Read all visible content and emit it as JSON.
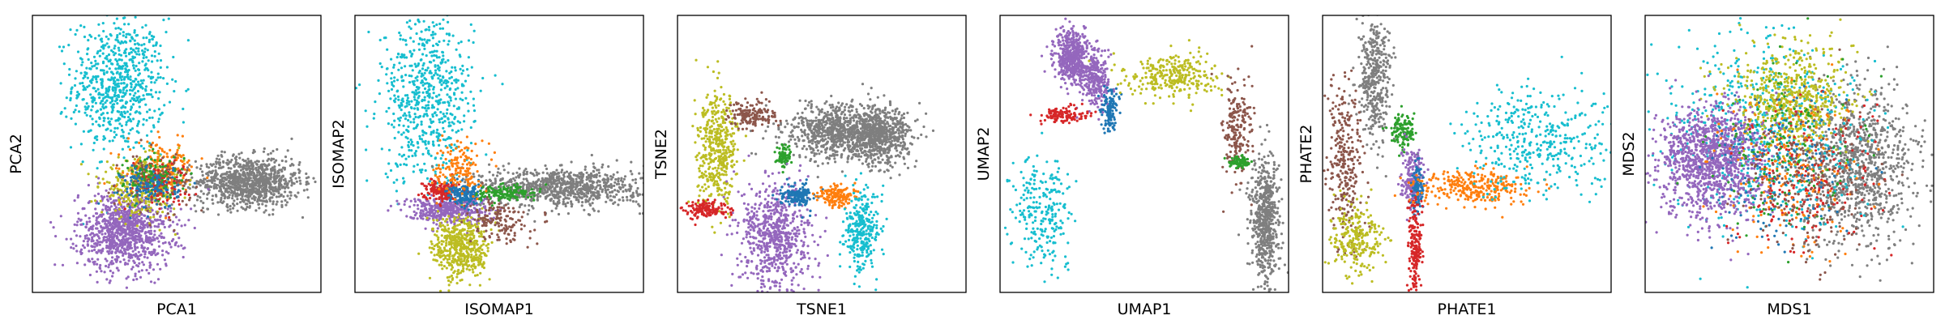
{
  "figure": {
    "colors": {
      "c0": "#1f77b4",
      "c1": "#ff7f0e",
      "c2": "#2ca02c",
      "c3": "#d62728",
      "c4": "#9467bd",
      "c5": "#8c564b",
      "c6": "#7f7f7f",
      "c7": "#bcbd22",
      "c8": "#17becf"
    }
  },
  "chart_data": [
    {
      "type": "scatter",
      "title": "",
      "xlabel": "PCA1",
      "ylabel": "PCA2",
      "xlim": [
        0,
        1
      ],
      "ylim": [
        0,
        1
      ],
      "ticks": "none",
      "grid": false,
      "clusters": [
        {
          "color": "c8",
          "n": 700,
          "cx": 0.3,
          "cy": 0.75,
          "sx": 0.08,
          "sy": 0.12
        },
        {
          "color": "c6",
          "n": 1000,
          "cx": 0.75,
          "cy": 0.4,
          "sx": 0.09,
          "sy": 0.045
        },
        {
          "color": "c4",
          "n": 1000,
          "cx": 0.32,
          "cy": 0.22,
          "sx": 0.08,
          "sy": 0.07
        },
        {
          "color": "c7",
          "n": 350,
          "cx": 0.38,
          "cy": 0.38,
          "sx": 0.07,
          "sy": 0.05
        },
        {
          "color": "c1",
          "n": 180,
          "cx": 0.45,
          "cy": 0.44,
          "sx": 0.06,
          "sy": 0.05
        },
        {
          "color": "c5",
          "n": 150,
          "cx": 0.43,
          "cy": 0.4,
          "sx": 0.06,
          "sy": 0.05
        },
        {
          "color": "c3",
          "n": 100,
          "cx": 0.44,
          "cy": 0.4,
          "sx": 0.05,
          "sy": 0.04
        },
        {
          "color": "c2",
          "n": 100,
          "cx": 0.42,
          "cy": 0.42,
          "sx": 0.05,
          "sy": 0.04
        },
        {
          "color": "c0",
          "n": 120,
          "cx": 0.41,
          "cy": 0.38,
          "sx": 0.05,
          "sy": 0.04
        }
      ]
    },
    {
      "type": "scatter",
      "title": "",
      "xlabel": "ISOMAP1",
      "ylabel": "ISOMAP2",
      "xlim": [
        0,
        1
      ],
      "ylim": [
        0,
        1
      ],
      "ticks": "none",
      "grid": false,
      "clusters": [
        {
          "color": "c8",
          "n": 650,
          "cx": 0.25,
          "cy": 0.7,
          "sx": 0.08,
          "sy": 0.15
        },
        {
          "color": "c6",
          "n": 900,
          "cx": 0.72,
          "cy": 0.38,
          "sx": 0.14,
          "sy": 0.035
        },
        {
          "color": "c4",
          "n": 450,
          "cx": 0.32,
          "cy": 0.3,
          "sx": 0.07,
          "sy": 0.025
        },
        {
          "color": "c7",
          "n": 500,
          "cx": 0.37,
          "cy": 0.16,
          "sx": 0.05,
          "sy": 0.06
        },
        {
          "color": "c5",
          "n": 150,
          "cx": 0.5,
          "cy": 0.26,
          "sx": 0.05,
          "sy": 0.04
        },
        {
          "color": "c3",
          "n": 150,
          "cx": 0.3,
          "cy": 0.37,
          "sx": 0.03,
          "sy": 0.02
        },
        {
          "color": "c0",
          "n": 150,
          "cx": 0.38,
          "cy": 0.35,
          "sx": 0.03,
          "sy": 0.02
        },
        {
          "color": "c2",
          "n": 150,
          "cx": 0.52,
          "cy": 0.36,
          "sx": 0.05,
          "sy": 0.015
        },
        {
          "color": "c1",
          "n": 150,
          "cx": 0.36,
          "cy": 0.45,
          "sx": 0.04,
          "sy": 0.05
        }
      ]
    },
    {
      "type": "scatter",
      "title": "",
      "xlabel": "TSNE1",
      "ylabel": "TSNE2",
      "xlim": [
        0,
        1
      ],
      "ylim": [
        0,
        1
      ],
      "ticks": "none",
      "grid": false,
      "clusters": [
        {
          "color": "c6",
          "n": 900,
          "cx": 0.58,
          "cy": 0.58,
          "sx": 0.1,
          "sy": 0.05
        },
        {
          "color": "c6",
          "n": 500,
          "cx": 0.7,
          "cy": 0.56,
          "sx": 0.05,
          "sy": 0.05
        },
        {
          "color": "c7",
          "n": 450,
          "cx": 0.14,
          "cy": 0.52,
          "sx": 0.035,
          "sy": 0.1
        },
        {
          "color": "c5",
          "n": 150,
          "cx": 0.26,
          "cy": 0.64,
          "sx": 0.04,
          "sy": 0.025
        },
        {
          "color": "c2",
          "n": 80,
          "cx": 0.37,
          "cy": 0.49,
          "sx": 0.015,
          "sy": 0.02
        },
        {
          "color": "c4",
          "n": 700,
          "cx": 0.34,
          "cy": 0.2,
          "sx": 0.06,
          "sy": 0.1
        },
        {
          "color": "c3",
          "n": 150,
          "cx": 0.1,
          "cy": 0.3,
          "sx": 0.035,
          "sy": 0.015
        },
        {
          "color": "c0",
          "n": 150,
          "cx": 0.42,
          "cy": 0.35,
          "sx": 0.03,
          "sy": 0.02
        },
        {
          "color": "c1",
          "n": 150,
          "cx": 0.55,
          "cy": 0.35,
          "sx": 0.03,
          "sy": 0.02
        },
        {
          "color": "c8",
          "n": 300,
          "cx": 0.64,
          "cy": 0.22,
          "sx": 0.03,
          "sy": 0.07
        }
      ]
    },
    {
      "type": "scatter",
      "title": "",
      "xlabel": "UMAP1",
      "ylabel": "UMAP2",
      "xlim": [
        0,
        1
      ],
      "ylim": [
        0,
        1
      ],
      "ticks": "none",
      "grid": false,
      "clusters": [
        {
          "color": "c4",
          "n": 500,
          "cx": 0.25,
          "cy": 0.85,
          "sx": 0.03,
          "sy": 0.05
        },
        {
          "color": "c4",
          "n": 250,
          "cx": 0.33,
          "cy": 0.77,
          "sx": 0.025,
          "sy": 0.05
        },
        {
          "color": "c3",
          "n": 120,
          "cx": 0.22,
          "cy": 0.64,
          "sx": 0.04,
          "sy": 0.015
        },
        {
          "color": "c0",
          "n": 120,
          "cx": 0.38,
          "cy": 0.66,
          "sx": 0.015,
          "sy": 0.04
        },
        {
          "color": "c8",
          "n": 250,
          "cx": 0.15,
          "cy": 0.3,
          "sx": 0.05,
          "sy": 0.1
        },
        {
          "color": "c7",
          "n": 300,
          "cx": 0.6,
          "cy": 0.78,
          "sx": 0.08,
          "sy": 0.04
        },
        {
          "color": "c5",
          "n": 200,
          "cx": 0.82,
          "cy": 0.58,
          "sx": 0.025,
          "sy": 0.1
        },
        {
          "color": "c2",
          "n": 80,
          "cx": 0.83,
          "cy": 0.47,
          "sx": 0.02,
          "sy": 0.01
        },
        {
          "color": "c6",
          "n": 600,
          "cx": 0.92,
          "cy": 0.25,
          "sx": 0.025,
          "sy": 0.12
        }
      ]
    },
    {
      "type": "scatter",
      "title": "",
      "xlabel": "PHATE1",
      "ylabel": "PHATE2",
      "xlim": [
        0,
        1
      ],
      "ylim": [
        0,
        1
      ],
      "ticks": "none",
      "grid": false,
      "clusters": [
        {
          "color": "c6",
          "n": 400,
          "cx": 0.18,
          "cy": 0.78,
          "sx": 0.03,
          "sy": 0.12
        },
        {
          "color": "c5",
          "n": 300,
          "cx": 0.08,
          "cy": 0.45,
          "sx": 0.03,
          "sy": 0.15
        },
        {
          "color": "c7",
          "n": 250,
          "cx": 0.12,
          "cy": 0.2,
          "sx": 0.05,
          "sy": 0.06
        },
        {
          "color": "c2",
          "n": 120,
          "cx": 0.28,
          "cy": 0.58,
          "sx": 0.02,
          "sy": 0.03
        },
        {
          "color": "c4",
          "n": 200,
          "cx": 0.31,
          "cy": 0.41,
          "sx": 0.02,
          "sy": 0.05
        },
        {
          "color": "c0",
          "n": 100,
          "cx": 0.33,
          "cy": 0.38,
          "sx": 0.01,
          "sy": 0.05
        },
        {
          "color": "c3",
          "n": 200,
          "cx": 0.32,
          "cy": 0.16,
          "sx": 0.01,
          "sy": 0.09
        },
        {
          "color": "c1",
          "n": 300,
          "cx": 0.52,
          "cy": 0.38,
          "sx": 0.1,
          "sy": 0.03
        },
        {
          "color": "c8",
          "n": 400,
          "cx": 0.75,
          "cy": 0.55,
          "sx": 0.14,
          "sy": 0.1
        }
      ]
    },
    {
      "type": "scatter",
      "title": "",
      "xlabel": "MDS1",
      "ylabel": "MDS2",
      "xlim": [
        0,
        1
      ],
      "ylim": [
        0,
        1
      ],
      "ticks": "none",
      "grid": false,
      "clusters": [
        {
          "color": "c6",
          "n": 1000,
          "cx": 0.74,
          "cy": 0.46,
          "sx": 0.1,
          "sy": 0.14
        },
        {
          "color": "c8",
          "n": 600,
          "cx": 0.4,
          "cy": 0.58,
          "sx": 0.17,
          "sy": 0.18
        },
        {
          "color": "c7",
          "n": 600,
          "cx": 0.5,
          "cy": 0.7,
          "sx": 0.1,
          "sy": 0.1
        },
        {
          "color": "c4",
          "n": 1200,
          "cx": 0.23,
          "cy": 0.47,
          "sx": 0.09,
          "sy": 0.1
        },
        {
          "color": "c3",
          "n": 200,
          "cx": 0.55,
          "cy": 0.4,
          "sx": 0.12,
          "sy": 0.14
        },
        {
          "color": "c1",
          "n": 200,
          "cx": 0.5,
          "cy": 0.45,
          "sx": 0.12,
          "sy": 0.15
        },
        {
          "color": "c2",
          "n": 150,
          "cx": 0.5,
          "cy": 0.5,
          "sx": 0.12,
          "sy": 0.15
        },
        {
          "color": "c0",
          "n": 150,
          "cx": 0.45,
          "cy": 0.45,
          "sx": 0.12,
          "sy": 0.15
        },
        {
          "color": "c5",
          "n": 200,
          "cx": 0.55,
          "cy": 0.4,
          "sx": 0.12,
          "sy": 0.15
        }
      ]
    }
  ]
}
